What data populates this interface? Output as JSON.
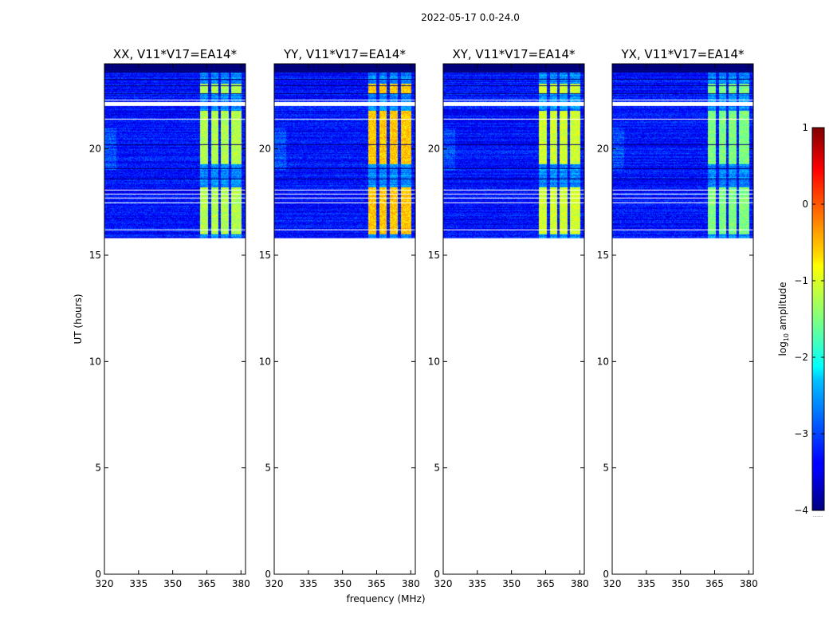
{
  "chart_data": {
    "type": "heatmap",
    "suptitle": "2022-05-17 0.0-24.0",
    "xlabel": "frequency (MHz)",
    "ylabel": "UT (hours)",
    "xlim": [
      320,
      382
    ],
    "ylim": [
      0,
      24
    ],
    "xticks": [
      320,
      335,
      350,
      365,
      380
    ],
    "yticks": [
      0,
      5,
      10,
      15,
      20
    ],
    "data_time_range_hours": [
      15.8,
      24.0
    ],
    "panels": [
      {
        "title": "XX, V11*V17=EA14*",
        "rfi_band_mhz": [
          362,
          380
        ],
        "rfi_level": 0.55
      },
      {
        "title": "YY, V11*V17=EA14*",
        "rfi_band_mhz": [
          361,
          380
        ],
        "rfi_level": 0.68
      },
      {
        "title": "XY, V11*V17=EA14*",
        "rfi_band_mhz": [
          362,
          380
        ],
        "rfi_level": 0.58
      },
      {
        "title": "YX, V11*V17=EA14*",
        "rfi_band_mhz": [
          362,
          380
        ],
        "rfi_level": 0.5
      }
    ],
    "flagged_rows_hours": [
      22.2,
      22.3,
      21.4,
      17.5,
      17.7,
      17.9,
      18.1,
      16.2
    ],
    "dark_rows_hours": [
      23.3,
      23.0,
      22.6,
      20.2,
      19.1,
      18.6
    ],
    "colorbar": {
      "label_main": "log",
      "label_sub": "10",
      "label_rest": " amplitude",
      "range": [
        -4,
        1
      ],
      "ticks": [
        "1",
        "0",
        "−1",
        "−2",
        "−3",
        "−4"
      ],
      "colormap": "jet",
      "footnote": "....."
    }
  }
}
